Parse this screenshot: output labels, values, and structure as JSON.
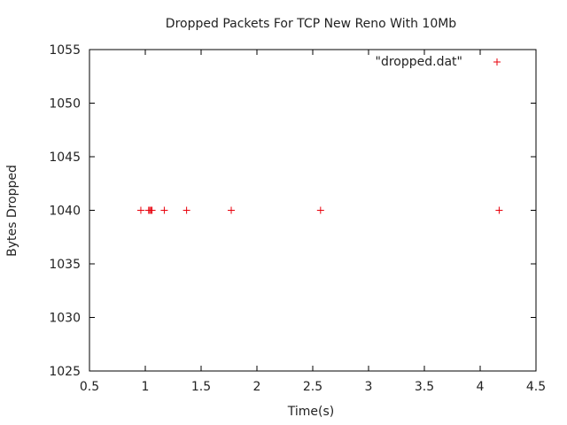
{
  "chart_data": {
    "type": "scatter",
    "title": "Dropped Packets For TCP New Reno With 10Mb",
    "xlabel": "Time(s)",
    "ylabel": "Bytes Dropped",
    "xlim": [
      0.5,
      4.5
    ],
    "ylim": [
      1025,
      1055
    ],
    "xticks": [
      0.5,
      1,
      1.5,
      2,
      2.5,
      3,
      3.5,
      4,
      4.5
    ],
    "xtick_labels": [
      "0.5",
      "1",
      "1.5",
      "2",
      "2.5",
      "3",
      "3.5",
      "4",
      "4.5"
    ],
    "yticks": [
      1025,
      1030,
      1035,
      1040,
      1045,
      1050,
      1055
    ],
    "ytick_labels": [
      "1025",
      "1030",
      "1035",
      "1040",
      "1045",
      "1050",
      "1055"
    ],
    "grid": false,
    "legend_position": "top-right",
    "series": [
      {
        "name": "\"dropped.dat\"",
        "marker": "+",
        "color": "#e8000b",
        "points": [
          {
            "x": 0.96,
            "y": 1040
          },
          {
            "x": 1.03,
            "y": 1040
          },
          {
            "x": 1.04,
            "y": 1040
          },
          {
            "x": 1.05,
            "y": 1040
          },
          {
            "x": 1.06,
            "y": 1040
          },
          {
            "x": 1.17,
            "y": 1040
          },
          {
            "x": 1.37,
            "y": 1040
          },
          {
            "x": 1.77,
            "y": 1040
          },
          {
            "x": 2.57,
            "y": 1040
          },
          {
            "x": 4.17,
            "y": 1040
          }
        ]
      }
    ]
  }
}
